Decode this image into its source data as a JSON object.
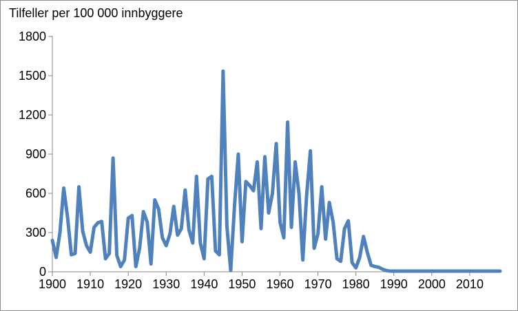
{
  "chart_data": {
    "type": "line",
    "title": "",
    "ylabel": "Tilfeller per 100 000 innbyggere",
    "xlabel": "",
    "xlim": [
      1900,
      2018
    ],
    "ylim": [
      0,
      1800
    ],
    "xticks": [
      1900,
      1910,
      1920,
      1930,
      1940,
      1950,
      1960,
      1970,
      1980,
      1990,
      2000,
      2010
    ],
    "yticks": [
      0,
      300,
      600,
      900,
      1200,
      1500,
      1800
    ],
    "line_color": "#4f81bd",
    "axis_color": "#868686",
    "grid": false,
    "legend": "none",
    "series": [
      {
        "x": [
          1900,
          1901,
          1902,
          1903,
          1904,
          1905,
          1906,
          1907,
          1908,
          1909,
          1910,
          1911,
          1912,
          1913,
          1914,
          1915,
          1916,
          1917,
          1918,
          1919,
          1920,
          1921,
          1922,
          1923,
          1924,
          1925,
          1926,
          1927,
          1928,
          1929,
          1930,
          1931,
          1932,
          1933,
          1934,
          1935,
          1936,
          1937,
          1938,
          1939,
          1940,
          1941,
          1942,
          1943,
          1944,
          1945,
          1946,
          1947,
          1948,
          1949,
          1950,
          1951,
          1952,
          1953,
          1954,
          1955,
          1956,
          1957,
          1958,
          1959,
          1960,
          1961,
          1962,
          1963,
          1964,
          1965,
          1966,
          1967,
          1968,
          1969,
          1970,
          1971,
          1972,
          1973,
          1974,
          1975,
          1976,
          1977,
          1978,
          1979,
          1980,
          1981,
          1982,
          1983,
          1984,
          1985,
          1986,
          1987,
          1988,
          1989,
          1990,
          1991,
          1992,
          1993,
          1994,
          1995,
          1996,
          1997,
          1998,
          1999,
          2000,
          2001,
          2002,
          2003,
          2004,
          2005,
          2006,
          2007,
          2008,
          2009,
          2010,
          2011,
          2012,
          2013,
          2014,
          2015,
          2016,
          2017,
          2018
        ],
        "values": [
          240,
          110,
          300,
          640,
          420,
          130,
          140,
          650,
          310,
          200,
          150,
          340,
          375,
          385,
          100,
          140,
          870,
          125,
          40,
          90,
          410,
          430,
          40,
          180,
          460,
          380,
          60,
          550,
          480,
          260,
          200,
          290,
          500,
          280,
          330,
          625,
          320,
          220,
          730,
          220,
          100,
          710,
          730,
          160,
          130,
          1535,
          350,
          10,
          500,
          900,
          230,
          690,
          660,
          620,
          840,
          330,
          880,
          450,
          600,
          980,
          380,
          260,
          1145,
          340,
          840,
          600,
          90,
          580,
          925,
          180,
          290,
          650,
          250,
          530,
          380,
          100,
          80,
          330,
          390,
          70,
          30,
          110,
          270,
          150,
          50,
          40,
          35,
          20,
          10,
          5,
          5,
          5,
          5,
          5,
          5,
          5,
          5,
          5,
          5,
          5,
          5,
          5,
          5,
          5,
          5,
          5,
          5,
          5,
          5,
          5,
          5,
          5,
          5,
          5,
          5,
          5,
          5,
          5,
          5
        ]
      }
    ]
  }
}
